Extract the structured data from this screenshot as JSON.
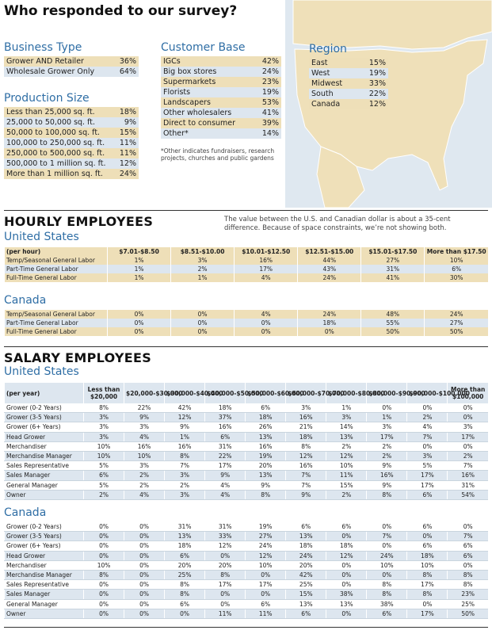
{
  "title": "Who responded to our survey?",
  "business_type": {
    "heading": "Business Type",
    "rows": [
      [
        "Grower AND Retailer",
        "36%"
      ],
      [
        "Wholesale Grower Only",
        "64%"
      ]
    ]
  },
  "production_size": {
    "heading": "Production Size",
    "rows": [
      [
        "Less than 25,000 sq. ft.",
        "18%"
      ],
      [
        "25,000 to 50,000 sq. ft.",
        "9%"
      ],
      [
        "50,000 to 100,000 sq. ft.",
        "15%"
      ],
      [
        "100,000 to 250,000 sq. ft.",
        "11%"
      ],
      [
        "250,000 to 500,000 sq. ft.",
        "11%"
      ],
      [
        "500,000 to 1 million sq. ft.",
        "12%"
      ],
      [
        "More than 1 million sq. ft.",
        "24%"
      ]
    ]
  },
  "customer_base": {
    "heading": "Customer Base",
    "rows": [
      [
        "IGCs",
        "42%"
      ],
      [
        "Big box stores",
        "24%"
      ],
      [
        "Supermarkets",
        "23%"
      ],
      [
        "Florists",
        "19%"
      ],
      [
        "Landscapers",
        "53%"
      ],
      [
        "Other wholesalers",
        "41%"
      ],
      [
        "Direct to consumer",
        "39%"
      ],
      [
        "Other*",
        "14%"
      ]
    ],
    "note": "*Other indicates fundraisers, research projects, churches and public gardens"
  },
  "region": {
    "heading": "Region",
    "rows": [
      [
        "East",
        "15%"
      ],
      [
        "West",
        "19%"
      ],
      [
        "Midwest",
        "33%"
      ],
      [
        "South",
        "22%"
      ],
      [
        "Canada",
        "12%"
      ]
    ]
  },
  "hourly": {
    "heading": "HOURLY EMPLOYEES",
    "note": "The value between the U.S. and Canadian dollar is about a 35-cent difference. Because of space constraints, we’re not showing both.",
    "us": {
      "heading": "United States",
      "columns": [
        "(per hour)",
        "$7.01-$8.50",
        "$8.51-$10.00",
        "$10.01-$12.50",
        "$12.51-$15.00",
        "$15.01-$17.50",
        "More than $17.50"
      ],
      "rows": [
        [
          "Temp/Seasonal General Labor",
          "1%",
          "3%",
          "16%",
          "44%",
          "27%",
          "10%"
        ],
        [
          "Part-Time General Labor",
          "1%",
          "2%",
          "17%",
          "43%",
          "31%",
          "6%"
        ],
        [
          "Full-Time General Labor",
          "1%",
          "1%",
          "4%",
          "24%",
          "41%",
          "30%"
        ]
      ]
    },
    "canada": {
      "heading": "Canada",
      "rows": [
        [
          "Temp/Seasonal General Labor",
          "0%",
          "0%",
          "4%",
          "24%",
          "48%",
          "24%"
        ],
        [
          "Part-Time General Labor",
          "0%",
          "0%",
          "0%",
          "18%",
          "55%",
          "27%"
        ],
        [
          "Full-Time General Labor",
          "0%",
          "0%",
          "0%",
          "0%",
          "50%",
          "50%"
        ]
      ]
    }
  },
  "salary": {
    "heading": "SALARY EMPLOYEES",
    "us": {
      "heading": "United States",
      "columns": [
        "(per year)",
        "Less than $20,000",
        "$20,000-$30,000",
        "$30,000-$40,000",
        "$40,000-$50,000",
        "$50,000-$60,000",
        "$60,000-$70,000",
        "$70,000-$80,000",
        "$80,000-$90,000",
        "$90,000-$100,000",
        "More than $100,000"
      ],
      "rows": [
        [
          "Grower (0-2 Years)",
          "8%",
          "22%",
          "42%",
          "18%",
          "6%",
          "3%",
          "1%",
          "0%",
          "0%",
          "0%"
        ],
        [
          "Grower (3-5 Years)",
          "3%",
          "9%",
          "12%",
          "37%",
          "18%",
          "16%",
          "3%",
          "1%",
          "2%",
          "0%"
        ],
        [
          "Grower (6+ Years)",
          "3%",
          "3%",
          "9%",
          "16%",
          "26%",
          "21%",
          "14%",
          "3%",
          "4%",
          "3%"
        ],
        [
          "Head Grower",
          "3%",
          "4%",
          "1%",
          "6%",
          "13%",
          "18%",
          "13%",
          "17%",
          "7%",
          "17%"
        ],
        [
          "Merchandiser",
          "10%",
          "16%",
          "16%",
          "31%",
          "16%",
          "8%",
          "2%",
          "2%",
          "0%",
          "0%"
        ],
        [
          "Merchandise Manager",
          "10%",
          "10%",
          "8%",
          "22%",
          "19%",
          "12%",
          "12%",
          "2%",
          "3%",
          "2%"
        ],
        [
          "Sales Representative",
          "5%",
          "3%",
          "7%",
          "17%",
          "20%",
          "16%",
          "10%",
          "9%",
          "5%",
          "7%"
        ],
        [
          "Sales Manager",
          "6%",
          "2%",
          "3%",
          "9%",
          "13%",
          "7%",
          "11%",
          "16%",
          "17%",
          "16%"
        ],
        [
          "General Manager",
          "5%",
          "2%",
          "2%",
          "4%",
          "9%",
          "7%",
          "15%",
          "9%",
          "17%",
          "31%"
        ],
        [
          "Owner",
          "2%",
          "4%",
          "3%",
          "4%",
          "8%",
          "9%",
          "2%",
          "8%",
          "6%",
          "54%"
        ]
      ]
    },
    "canada": {
      "heading": "Canada",
      "rows": [
        [
          "Grower (0-2 Years)",
          "0%",
          "0%",
          "31%",
          "31%",
          "19%",
          "6%",
          "6%",
          "0%",
          "6%",
          "0%"
        ],
        [
          "Grower (3-5 Years)",
          "0%",
          "0%",
          "13%",
          "33%",
          "27%",
          "13%",
          "0%",
          "7%",
          "0%",
          "7%"
        ],
        [
          "Grower (6+ Years)",
          "0%",
          "0%",
          "18%",
          "12%",
          "24%",
          "18%",
          "18%",
          "0%",
          "6%",
          "6%"
        ],
        [
          "Head Grower",
          "0%",
          "0%",
          "6%",
          "0%",
          "12%",
          "24%",
          "12%",
          "24%",
          "18%",
          "6%"
        ],
        [
          "Merchandiser",
          "10%",
          "0%",
          "20%",
          "20%",
          "10%",
          "20%",
          "0%",
          "10%",
          "10%",
          "0%"
        ],
        [
          "Merchandise Manager",
          "8%",
          "0%",
          "25%",
          "8%",
          "0%",
          "42%",
          "0%",
          "0%",
          "8%",
          "8%"
        ],
        [
          "Sales Representative",
          "0%",
          "0%",
          "8%",
          "17%",
          "17%",
          "25%",
          "0%",
          "8%",
          "17%",
          "8%"
        ],
        [
          "Sales Manager",
          "0%",
          "0%",
          "8%",
          "0%",
          "0%",
          "15%",
          "38%",
          "8%",
          "8%",
          "23%"
        ],
        [
          "General Manager",
          "0%",
          "0%",
          "6%",
          "0%",
          "6%",
          "13%",
          "13%",
          "38%",
          "0%",
          "25%"
        ],
        [
          "Owner",
          "0%",
          "0%",
          "0%",
          "11%",
          "11%",
          "6%",
          "0%",
          "6%",
          "17%",
          "50%"
        ]
      ]
    }
  }
}
